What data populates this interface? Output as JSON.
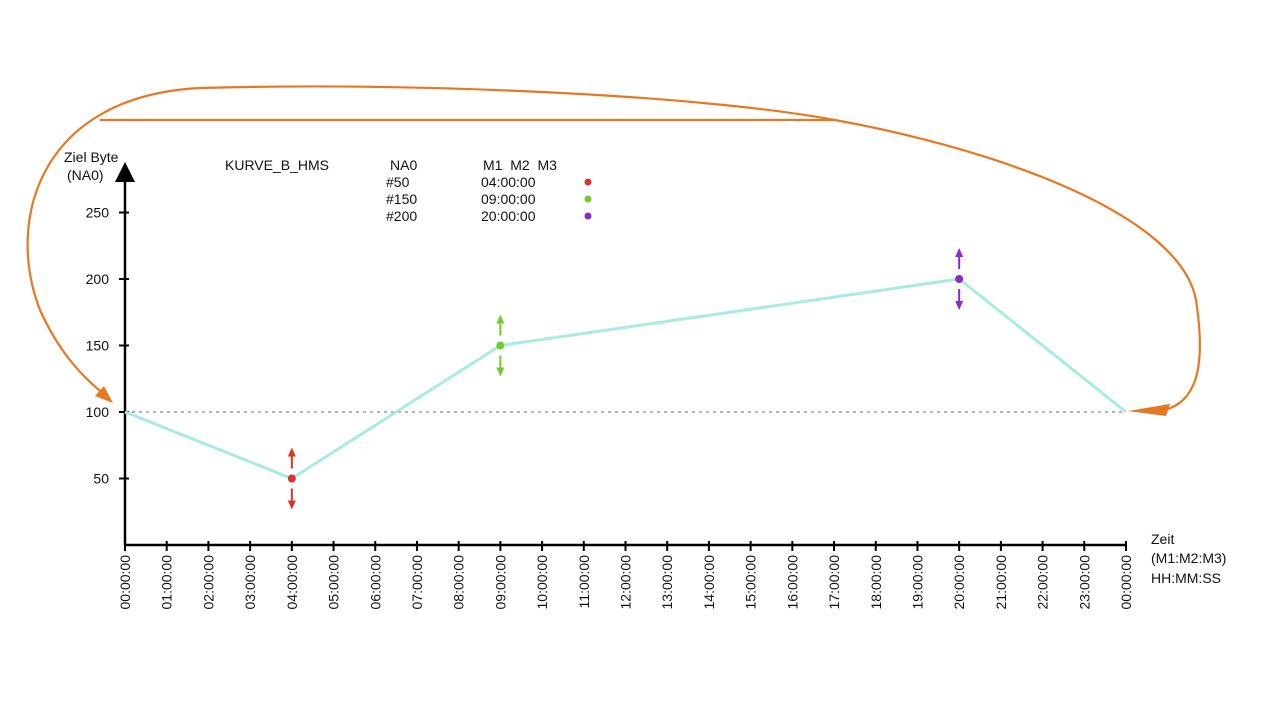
{
  "chart_data": {
    "type": "line",
    "title": "KURVE_B_HMS",
    "ylabel_line1": "Ziel Byte",
    "ylabel_line2": "(NA0)",
    "xlabel_line1": "Zeit",
    "xlabel_line2": "(M1:M2:M3)",
    "xlabel_line3": "HH:MM:SS",
    "x_hours": [
      0,
      4,
      9,
      20,
      24
    ],
    "y": [
      100,
      50,
      150,
      200,
      100
    ],
    "ylim": [
      0,
      275
    ],
    "xlim_hours": [
      0,
      24
    ],
    "yticks": [
      50,
      100,
      150,
      200,
      250
    ],
    "xtick_labels": [
      "00:00:00",
      "01:00:00",
      "02:00:00",
      "03:00:00",
      "04:00:00",
      "05:00:00",
      "06:00:00",
      "07:00:00",
      "08:00:00",
      "09:00:00",
      "10:00:00",
      "11:00:00",
      "12:00:00",
      "13:00:00",
      "14:00:00",
      "15:00:00",
      "16:00:00",
      "17:00:00",
      "18:00:00",
      "19:00:00",
      "20:00:00",
      "21:00:00",
      "22:00:00",
      "23:00:00",
      "00:00:00"
    ],
    "reference_line_y": 100,
    "line_color": "#a8ece0",
    "reference_line_color": "#888888",
    "wrap_arrow_color": "#e87722",
    "points": [
      {
        "hour": 4,
        "value": 50,
        "color": "#d9342b"
      },
      {
        "hour": 9,
        "value": 150,
        "color": "#6fce2c"
      },
      {
        "hour": 20,
        "value": 200,
        "color": "#8a2bc8"
      }
    ],
    "legend": {
      "title": "KURVE_B_HMS",
      "title_color": "#3a2fa8",
      "header_value": "NA0",
      "header_time": "M1  M2  M3",
      "header_color": "#d9342b",
      "rows": [
        {
          "value": "#50",
          "time": "04:00:00",
          "color": "#d9342b"
        },
        {
          "value": "#150",
          "time": "09:00:00",
          "color": "#6fce2c"
        },
        {
          "value": "#200",
          "time": "20:00:00",
          "color": "#8a2bc8"
        }
      ]
    }
  }
}
